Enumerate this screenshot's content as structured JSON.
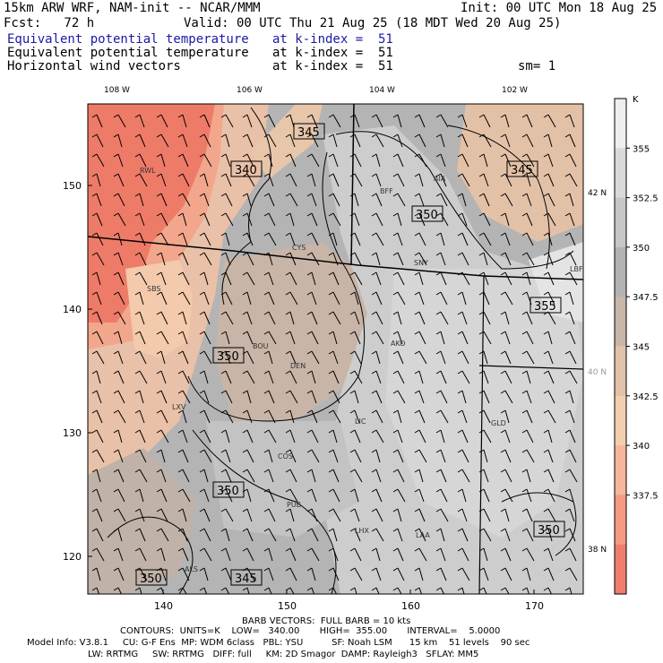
{
  "header": {
    "model": "15km ARW WRF, NAM-init -- NCAR/MMM",
    "init": "Init: 00 UTC Mon 18 Aug 25",
    "fcst": "Fcst:   72 h",
    "valid": "Valid: 00 UTC Thu 21 Aug 25 (18 MDT Wed 20 Aug 25)",
    "fields": [
      {
        "name": "Equivalent potential temperature",
        "level": "at k-index =  51",
        "highlight": true
      },
      {
        "name": "Equivalent potential temperature",
        "level": "at k-index =  51",
        "highlight": false
      },
      {
        "name": "Horizontal wind vectors",
        "level": "at k-index =  51",
        "highlight": false
      }
    ],
    "smoothing": "sm= 1"
  },
  "map": {
    "top_lon_labels": [
      "108 W",
      "106 W",
      "104 W",
      "102 W"
    ],
    "right_lat_labels": [
      "42 N",
      "40 N",
      "38 N"
    ],
    "x_ticks": [
      "140",
      "150",
      "160",
      "170"
    ],
    "y_ticks": [
      "150",
      "140",
      "130",
      "120"
    ],
    "stations": [
      "RWL",
      "BFF",
      "AIA",
      "CYS",
      "SNY",
      "LBF",
      "SBS",
      "BOU",
      "DEN",
      "AKO",
      "LXV",
      "LIC",
      "GLD",
      "COS",
      "PUB",
      "LHX",
      "LAA",
      "ALS"
    ],
    "contour_labels": [
      "345",
      "340",
      "345",
      "350",
      "355",
      "350",
      "350",
      "350",
      "350",
      "345"
    ]
  },
  "colorbar": {
    "unit": "K",
    "levels": [
      "355",
      "352.5",
      "350",
      "347.5",
      "345",
      "342.5",
      "340",
      "337.5"
    ],
    "colors": [
      "#eeeeee",
      "#d9d9d9",
      "#c7c7c7",
      "#b3b3b3",
      "#c9b6a9",
      "#e2c2aa",
      "#f2cfae",
      "#f7b69a",
      "#f49a80",
      "#ef7d6b"
    ]
  },
  "footer": {
    "barb": "BARB VECTORS:  FULL BARB = 10 kts",
    "contours": "CONTOURS:  UNITS=K    LOW=   340.00       HIGH=  355.00       INTERVAL=    5.0000",
    "info1": "Model Info: V3.8.1     CU: G-F Ens  MP: WDM 6class   PBL: YSU          SF: Noah LSM      15 km    51 levels    90 sec",
    "info2": "LW: RRTMG     SW: RRTMG   DIFF: full     KM: 2D Smagor  DAMP: Rayleigh3   SFLAY: MM5"
  }
}
